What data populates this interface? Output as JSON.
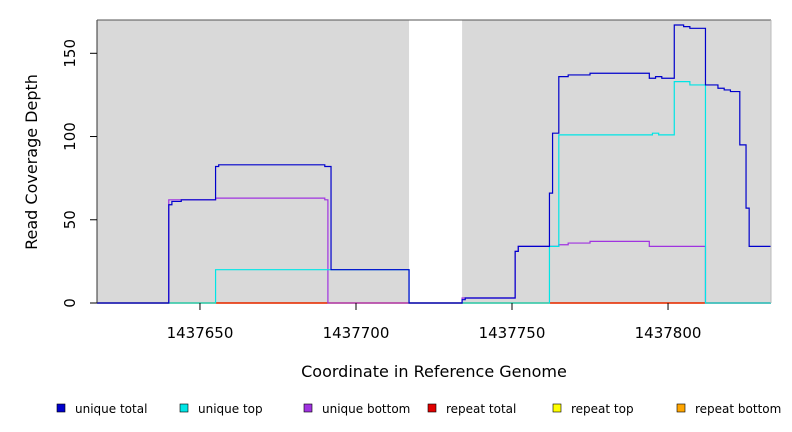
{
  "chart_data": {
    "type": "line",
    "xlabel": "Coordinate in Reference Genome",
    "ylabel": "Read Coverage Depth",
    "xlim": [
      1437617,
      1437833
    ],
    "ylim": [
      0,
      170
    ],
    "x_ticks": [
      1437650,
      1437700,
      1437750,
      1437800
    ],
    "y_ticks": [
      0,
      50,
      100,
      150
    ],
    "grid": false,
    "background": "#d9d9d9",
    "gap_region": [
      1437717,
      1437734
    ],
    "legend_position": "bottom",
    "series": [
      {
        "name": "unique total",
        "color": "#0000cc",
        "x": [
          1437617,
          1437640,
          1437640,
          1437641,
          1437641,
          1437644,
          1437644,
          1437655,
          1437655,
          1437656,
          1437656,
          1437690,
          1437690,
          1437692,
          1437692,
          1437717,
          1437717,
          1437734,
          1437734,
          1437735,
          1437735,
          1437751,
          1437751,
          1437752,
          1437752,
          1437762,
          1437762,
          1437763,
          1437763,
          1437765,
          1437765,
          1437768,
          1437768,
          1437775,
          1437775,
          1437794,
          1437794,
          1437796,
          1437796,
          1437798,
          1437798,
          1437802,
          1437802,
          1437805,
          1437805,
          1437807,
          1437807,
          1437812,
          1437812,
          1437816,
          1437816,
          1437818,
          1437818,
          1437820,
          1437820,
          1437823,
          1437823,
          1437825,
          1437825,
          1437826,
          1437826,
          1437833
        ],
        "y": [
          0,
          0,
          59,
          59,
          61,
          61,
          62,
          62,
          82,
          82,
          83,
          83,
          82,
          82,
          20,
          20,
          0,
          0,
          2,
          2,
          3,
          3,
          31,
          31,
          34,
          34,
          66,
          66,
          102,
          102,
          136,
          136,
          137,
          137,
          138,
          138,
          135,
          135,
          136,
          136,
          135,
          135,
          167,
          167,
          166,
          166,
          165,
          165,
          131,
          131,
          129,
          129,
          128,
          128,
          127,
          127,
          95,
          95,
          57,
          57,
          34,
          34
        ]
      },
      {
        "name": "unique top",
        "color": "#00e5e5",
        "x": [
          1437617,
          1437655,
          1437655,
          1437717,
          1437717,
          1437762,
          1437762,
          1437765,
          1437765,
          1437795,
          1437795,
          1437797,
          1437797,
          1437802,
          1437802,
          1437807,
          1437807,
          1437812,
          1437812,
          1437833
        ],
        "y": [
          0,
          0,
          20,
          20,
          0,
          0,
          34,
          34,
          101,
          101,
          102,
          102,
          101,
          101,
          133,
          133,
          131,
          131,
          0,
          0
        ]
      },
      {
        "name": "unique bottom",
        "color": "#a033e0",
        "x": [
          1437617,
          1437640,
          1437640,
          1437655,
          1437655,
          1437690,
          1437690,
          1437691,
          1437691,
          1437734,
          1437734,
          1437751,
          1437751,
          1437752,
          1437752,
          1437765,
          1437765,
          1437768,
          1437768,
          1437775,
          1437775,
          1437794,
          1437794,
          1437812,
          1437812,
          1437833
        ],
        "y": [
          0,
          0,
          62,
          62,
          63,
          63,
          62,
          62,
          0,
          0,
          3,
          3,
          31,
          31,
          34,
          34,
          35,
          35,
          36,
          36,
          37,
          37,
          34,
          34,
          0,
          0
        ]
      },
      {
        "name": "repeat total",
        "color": "#e00000",
        "x": [
          1437617,
          1437833
        ],
        "y": [
          0,
          0
        ]
      },
      {
        "name": "repeat top",
        "color": "#ffff00",
        "x": [
          1437617,
          1437833
        ],
        "y": [
          0,
          0
        ]
      },
      {
        "name": "repeat bottom",
        "color": "#ffa500",
        "x": [
          1437617,
          1437833
        ],
        "y": [
          0,
          0
        ]
      }
    ]
  }
}
